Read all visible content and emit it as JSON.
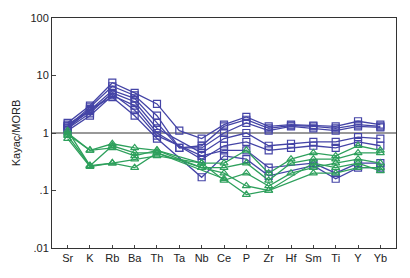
{
  "chart_data": {
    "type": "line",
    "y_label": "Kayaç/MORB",
    "log": "y",
    "grid": false,
    "categories": [
      "Sr",
      "K",
      "Rb",
      "Ba",
      "Th",
      "Ta",
      "Nb",
      "Ce",
      "P",
      "Zr",
      "Hf",
      "Sm",
      "Ti",
      "Y",
      "Yb"
    ],
    "ylim": [
      0.01,
      100
    ],
    "yticks": [
      {
        "value": 0.01,
        "label": ".01"
      },
      {
        "value": 0.1,
        "label": ".1"
      },
      1,
      10,
      100
    ],
    "hlines": [
      1
    ],
    "series": [
      {
        "color": "#4444a6",
        "marker": "square",
        "values": [
          1.5,
          3.0,
          7.5,
          5.0,
          3.2,
          1.1,
          0.8,
          1.4,
          1.9,
          1.3,
          1.4,
          1.35,
          1.3,
          1.6,
          1.4
        ]
      },
      {
        "color": "#4444a6",
        "marker": "square",
        "values": [
          1.3,
          2.8,
          6.5,
          4.5,
          2.0,
          0.55,
          0.6,
          1.3,
          1.7,
          1.2,
          1.35,
          1.3,
          1.2,
          1.4,
          1.3
        ]
      },
      {
        "color": "#4444a6",
        "marker": "square",
        "values": [
          1.4,
          2.5,
          5.5,
          4.0,
          1.5,
          0.55,
          0.55,
          1.0,
          1.5,
          1.1,
          1.3,
          1.2,
          1.1,
          1.3,
          1.25
        ]
      },
      {
        "color": "#4444a6",
        "marker": "square",
        "values": [
          1.2,
          2.2,
          5.0,
          3.5,
          1.2,
          null,
          0.45,
          0.8,
          1.0,
          0.6,
          0.65,
          0.7,
          0.7,
          0.85,
          0.8
        ]
      },
      {
        "color": "#4444a6",
        "marker": "square",
        "values": [
          1.1,
          2.0,
          4.5,
          3.0,
          1.0,
          null,
          0.35,
          0.6,
          0.7,
          0.5,
          0.55,
          0.6,
          0.55,
          0.7,
          0.6
        ]
      },
      {
        "color": "#4444a6",
        "marker": "square",
        "values": [
          1.3,
          2.4,
          4.8,
          2.5,
          0.9,
          null,
          0.4,
          0.5,
          0.5,
          0.25,
          null,
          0.3,
          0.2,
          0.3,
          0.3
        ]
      },
      {
        "color": "#4444a6",
        "marker": "square",
        "values": [
          1.2,
          2.6,
          4.2,
          2.0,
          0.8,
          null,
          0.17,
          0.4,
          0.35,
          0.18,
          null,
          0.27,
          0.16,
          0.25,
          0.25
        ]
      },
      {
        "color": "#2ea05c",
        "marker": "triangle",
        "values": [
          1.0,
          0.5,
          0.65,
          0.55,
          0.5,
          null,
          0.3,
          0.3,
          0.5,
          0.2,
          0.35,
          0.45,
          0.4,
          0.6,
          0.5
        ]
      },
      {
        "color": "#2ea05c",
        "marker": "triangle",
        "values": [
          0.9,
          0.27,
          0.6,
          0.45,
          0.45,
          null,
          0.25,
          0.25,
          0.3,
          0.15,
          0.3,
          0.35,
          0.35,
          0.45,
          0.45
        ]
      },
      {
        "color": "#2ea05c",
        "marker": "triangle",
        "values": [
          1.1,
          0.27,
          0.3,
          0.35,
          0.4,
          null,
          0.3,
          0.15,
          0.2,
          0.12,
          0.2,
          0.25,
          0.3,
          0.35,
          0.3
        ]
      },
      {
        "color": "#2ea05c",
        "marker": "triangle",
        "values": [
          0.8,
          0.26,
          0.3,
          0.25,
          0.45,
          null,
          null,
          0.16,
          0.085,
          0.1,
          null,
          0.3,
          0.25,
          0.3,
          0.22
        ]
      },
      {
        "color": "#2ea05c",
        "marker": "triangle",
        "values": [
          0.95,
          0.5,
          0.55,
          0.4,
          0.5,
          null,
          0.25,
          0.2,
          0.12,
          0.1,
          null,
          0.2,
          0.2,
          0.25,
          0.25
        ]
      }
    ]
  }
}
